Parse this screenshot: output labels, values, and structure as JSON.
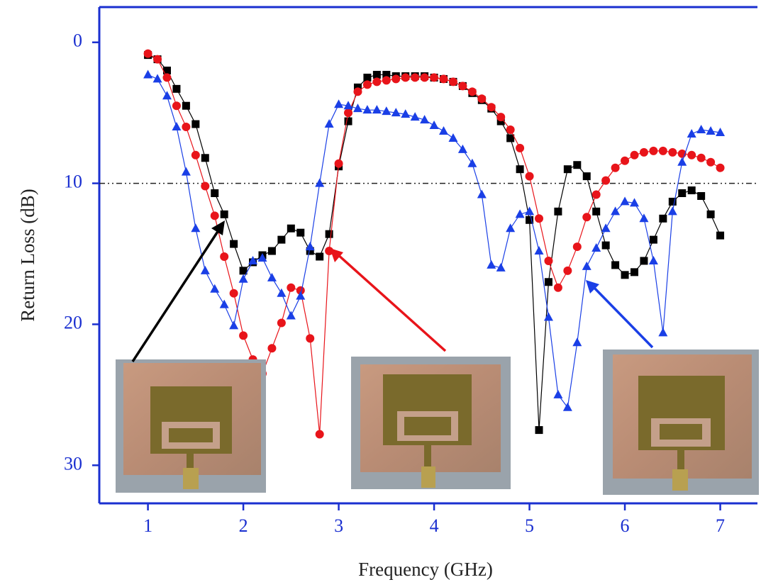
{
  "chart_data": {
    "type": "line",
    "y_label": "Return Loss (dB)",
    "x_label": "Frequency (GHz)",
    "x": [
      1.0,
      1.1,
      1.2,
      1.3,
      1.4,
      1.5,
      1.6,
      1.7,
      1.8,
      1.9,
      2.0,
      2.1,
      2.2,
      2.3,
      2.4,
      2.5,
      2.6,
      2.7,
      2.8,
      2.9,
      3.0,
      3.1,
      3.2,
      3.3,
      3.4,
      3.5,
      3.6,
      3.7,
      3.8,
      3.9,
      4.0,
      4.1,
      4.2,
      4.3,
      4.4,
      4.5,
      4.6,
      4.7,
      4.8,
      4.9,
      5.0,
      5.1,
      5.2,
      5.3,
      5.4,
      5.5,
      5.6,
      5.7,
      5.8,
      5.9,
      6.0,
      6.1,
      6.2,
      6.3,
      6.4,
      6.5,
      6.6,
      6.7,
      6.8,
      6.9,
      7.0
    ],
    "series": [
      {
        "marker": "square",
        "color": "#000000",
        "values": [
          0.9,
          1.2,
          2.0,
          3.3,
          4.5,
          5.8,
          8.2,
          10.7,
          12.2,
          14.3,
          16.2,
          15.6,
          15.1,
          14.8,
          14.0,
          13.2,
          13.5,
          14.8,
          15.2,
          13.6,
          8.8,
          5.6,
          3.2,
          2.5,
          2.3,
          2.3,
          2.4,
          2.4,
          2.4,
          2.4,
          2.5,
          2.6,
          2.8,
          3.1,
          3.6,
          4.1,
          4.7,
          5.6,
          6.8,
          9.0,
          12.6,
          27.5,
          17.0,
          12.0,
          9.0,
          8.7,
          9.5,
          12.0,
          14.4,
          15.8,
          16.5,
          16.3,
          15.5,
          14.0,
          12.5,
          11.3,
          10.7,
          10.5,
          10.9,
          12.2,
          13.7
        ]
      },
      {
        "marker": "circle",
        "color": "#e8141a",
        "values": [
          0.8,
          1.2,
          2.5,
          4.5,
          6.0,
          8.0,
          10.2,
          12.3,
          15.2,
          17.8,
          20.8,
          22.5,
          23.5,
          21.7,
          19.9,
          17.4,
          17.6,
          21.0,
          27.8,
          14.8,
          8.6,
          5.0,
          3.5,
          3.0,
          2.8,
          2.7,
          2.6,
          2.5,
          2.5,
          2.5,
          2.5,
          2.6,
          2.8,
          3.1,
          3.5,
          4.0,
          4.6,
          5.3,
          6.2,
          7.5,
          9.5,
          12.5,
          15.5,
          17.4,
          16.2,
          14.5,
          12.4,
          10.8,
          9.8,
          8.9,
          8.4,
          8.0,
          7.8,
          7.7,
          7.7,
          7.8,
          7.9,
          8.0,
          8.2,
          8.5,
          8.9
        ]
      },
      {
        "marker": "triangle",
        "color": "#1a3fe6",
        "values": [
          2.3,
          2.6,
          3.8,
          6.0,
          9.2,
          13.2,
          16.2,
          17.5,
          18.6,
          20.1,
          16.8,
          15.5,
          15.3,
          16.7,
          17.8,
          19.4,
          18.0,
          14.5,
          10.0,
          5.8,
          4.4,
          4.5,
          4.7,
          4.8,
          4.8,
          4.9,
          5.0,
          5.1,
          5.3,
          5.5,
          5.9,
          6.3,
          6.8,
          7.6,
          8.6,
          10.8,
          15.8,
          16.0,
          13.2,
          12.2,
          12.0,
          14.8,
          19.5,
          25.0,
          25.9,
          21.3,
          15.9,
          14.6,
          13.2,
          12.0,
          11.3,
          11.4,
          12.5,
          15.5,
          20.6,
          12.0,
          8.5,
          6.5,
          6.2,
          6.3,
          6.4
        ]
      }
    ],
    "xlim": [
      0.49,
      7.39
    ],
    "xticks": [
      1,
      2,
      3,
      4,
      5,
      6,
      7
    ],
    "ylim": [
      -2.5,
      32.7
    ],
    "yticks": [
      0,
      10,
      20,
      30
    ],
    "y_inverted": true,
    "hline": 10
  }
}
